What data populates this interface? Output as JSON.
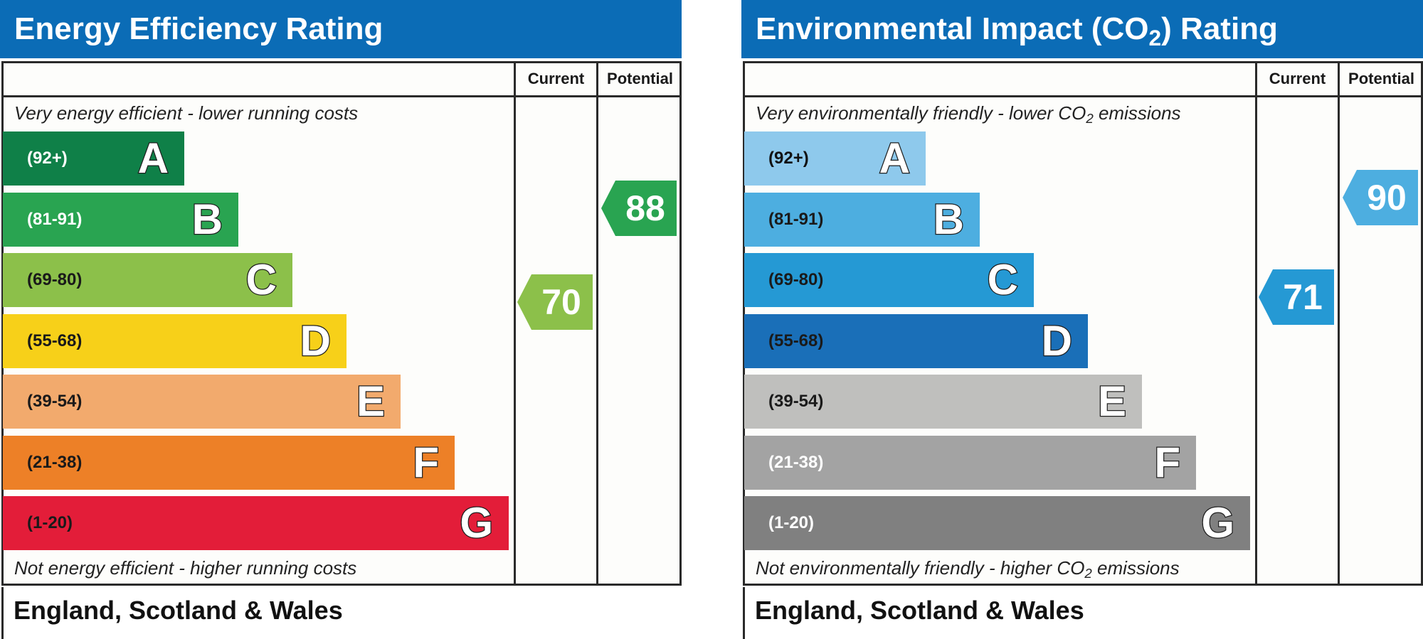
{
  "chart_data": [
    {
      "type": "bar",
      "title": "Energy Efficiency Rating",
      "columns": [
        "Current",
        "Potential"
      ],
      "top_caption": "Very energy efficient - lower running costs",
      "bottom_caption": "Not energy efficient - higher running costs",
      "footer": "England, Scotland & Wales",
      "bands": [
        {
          "letter": "A",
          "range": "(92+)",
          "color": "#0f8048",
          "text_color": "#ffffff"
        },
        {
          "letter": "B",
          "range": "(81-91)",
          "color": "#29a451",
          "text_color": "#ffffff"
        },
        {
          "letter": "C",
          "range": "(69-80)",
          "color": "#8cc04a",
          "text_color": "#1a1a1a"
        },
        {
          "letter": "D",
          "range": "(55-68)",
          "color": "#f7d019",
          "text_color": "#1a1a1a"
        },
        {
          "letter": "E",
          "range": "(39-54)",
          "color": "#f2aa6d",
          "text_color": "#1a1a1a"
        },
        {
          "letter": "F",
          "range": "(21-38)",
          "color": "#ed8027",
          "text_color": "#1a1a1a"
        },
        {
          "letter": "G",
          "range": "(1-20)",
          "color": "#e31d39",
          "text_color": "#1a1a1a"
        }
      ],
      "current": {
        "value": 70,
        "color": "#8cc04a"
      },
      "potential": {
        "value": 88,
        "color": "#29a451"
      }
    },
    {
      "type": "bar",
      "title": "Environmental Impact (CO₂) Rating",
      "columns": [
        "Current",
        "Potential"
      ],
      "top_caption": "Very environmentally friendly - lower CO₂ emissions",
      "bottom_caption": "Not environmentally friendly - higher CO₂ emissions",
      "footer": "England, Scotland & Wales",
      "bands": [
        {
          "letter": "A",
          "range": "(92+)",
          "color": "#8ec9ec",
          "text_color": "#111111"
        },
        {
          "letter": "B",
          "range": "(81-91)",
          "color": "#4daee0",
          "text_color": "#1a1a1a"
        },
        {
          "letter": "C",
          "range": "(69-80)",
          "color": "#2599d4",
          "text_color": "#1a1a1a"
        },
        {
          "letter": "D",
          "range": "(55-68)",
          "color": "#1a6fb8",
          "text_color": "#1a1a1a"
        },
        {
          "letter": "E",
          "range": "(39-54)",
          "color": "#bfbfbd",
          "text_color": "#1a1a1a"
        },
        {
          "letter": "F",
          "range": "(21-38)",
          "color": "#a3a3a3",
          "text_color": "#ffffff"
        },
        {
          "letter": "G",
          "range": "(1-20)",
          "color": "#808080",
          "text_color": "#ffffff"
        }
      ],
      "current": {
        "value": 71,
        "color": "#2599d4"
      },
      "potential": {
        "value": 90,
        "color": "#4daee0"
      }
    }
  ]
}
